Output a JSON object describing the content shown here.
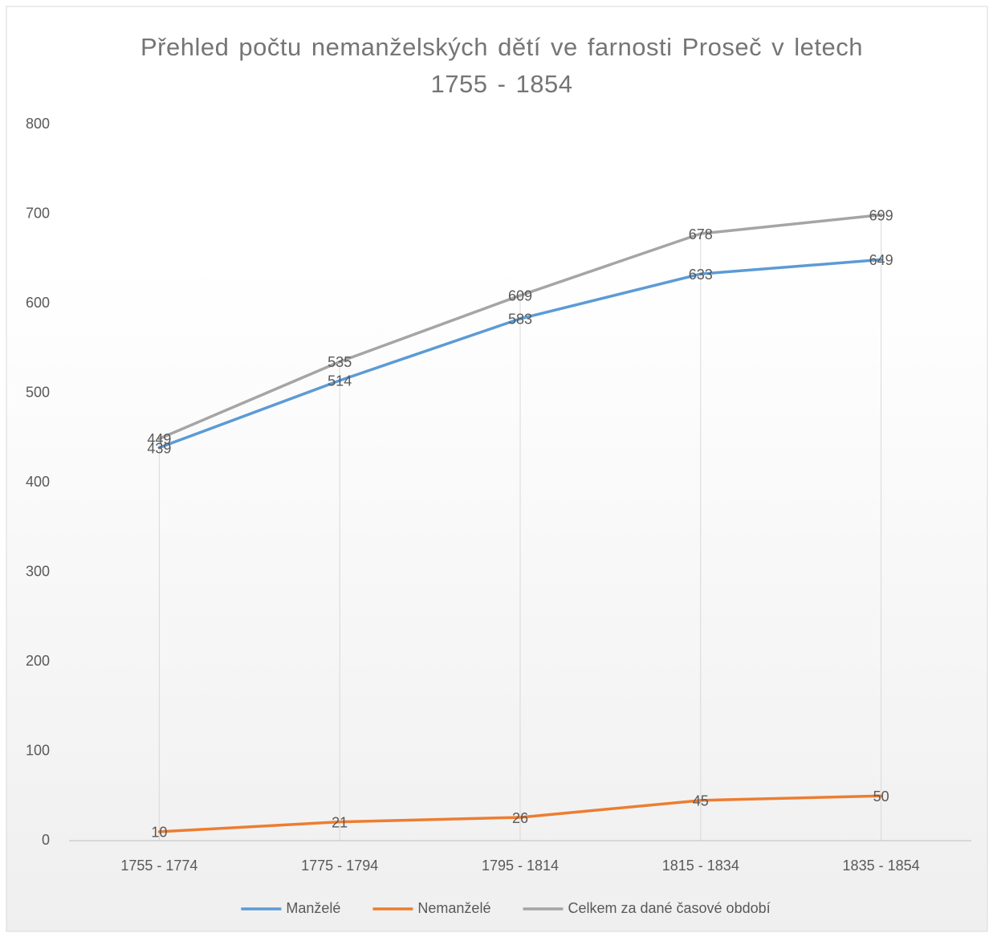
{
  "chart_data": {
    "type": "line",
    "title": "Přehled počtu nemanželských dětí ve farnosti Proseč v letech 1755 - 1854",
    "categories": [
      "1755 - 1774",
      "1775 - 1794",
      "1795 - 1814",
      "1815 - 1834",
      "1835 - 1854"
    ],
    "series": [
      {
        "name": "Manželé",
        "color": "#5b9bd5",
        "values": [
          439,
          514,
          583,
          633,
          649
        ]
      },
      {
        "name": "Nemanželé",
        "color": "#ed7d31",
        "values": [
          10,
          21,
          26,
          45,
          50
        ]
      },
      {
        "name": "Celkem za dané časové období",
        "color": "#a5a5a5",
        "values": [
          449,
          535,
          609,
          678,
          699
        ]
      }
    ],
    "ylim": [
      0,
      800
    ],
    "yticks": [
      0,
      100,
      200,
      300,
      400,
      500,
      600,
      700,
      800
    ],
    "legend": "bottom"
  }
}
